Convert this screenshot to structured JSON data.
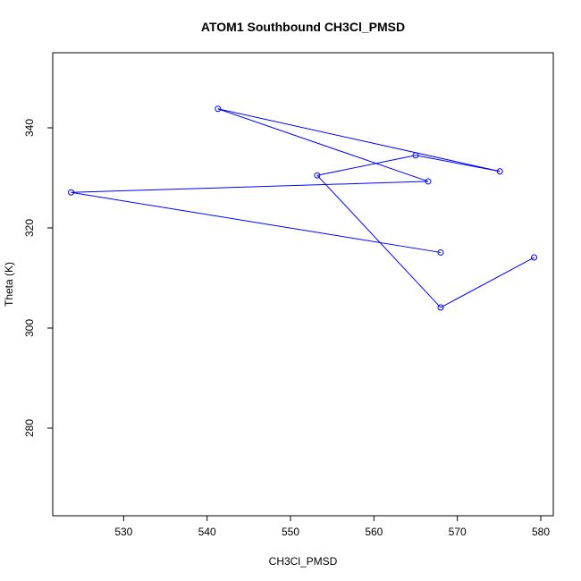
{
  "chart_data": {
    "type": "line",
    "title": "ATOM1 Southbound CH3Cl_PMSD",
    "xlabel": "CH3Cl_PMSD",
    "ylabel": "Theta (K)",
    "xlim": [
      521.5,
      581.5
    ],
    "ylim": [
      262.5,
      355.0
    ],
    "x_ticks": [
      530,
      540,
      550,
      560,
      570,
      580
    ],
    "y_ticks": [
      280,
      300,
      320,
      340
    ],
    "series": [
      {
        "color": "#0000ff",
        "marker": "open-circle",
        "points": [
          {
            "x": 579.2,
            "y": 314.1
          },
          {
            "x": 568.0,
            "y": 304.1
          },
          {
            "x": 553.2,
            "y": 330.5
          },
          {
            "x": 565.0,
            "y": 334.5
          },
          {
            "x": 575.1,
            "y": 331.3
          },
          {
            "x": 541.3,
            "y": 343.8
          },
          {
            "x": 566.5,
            "y": 329.3
          },
          {
            "x": 523.7,
            "y": 327.1
          },
          {
            "x": 568.0,
            "y": 315.1
          }
        ]
      }
    ]
  }
}
